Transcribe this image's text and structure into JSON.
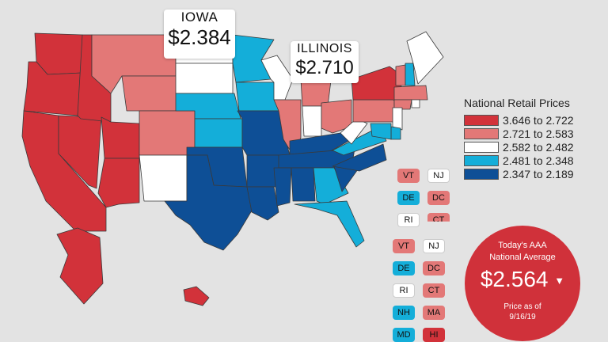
{
  "legend": {
    "title": "National Retail Prices",
    "items": [
      {
        "label": "3.646 to 2.722",
        "color": "#d2323a"
      },
      {
        "label": "2.721 to 2.583",
        "color": "#e37877"
      },
      {
        "label": "2.582 to 2.482",
        "color": "#ffffff"
      },
      {
        "label": "2.481 to 2.348",
        "color": "#14aed9"
      },
      {
        "label": "2.347 to 2.189",
        "color": "#0e4f96"
      }
    ]
  },
  "callouts": {
    "iowa": {
      "name": "IOWA",
      "price": "$2.384"
    },
    "illinois": {
      "name": "ILLINOIS",
      "price": "$2.710"
    }
  },
  "small_states": {
    "top": [
      {
        "code": "VT",
        "bin": 1
      },
      {
        "code": "NJ",
        "bin": 2
      },
      {
        "code": "DE",
        "bin": 3
      },
      {
        "code": "DC",
        "bin": 1
      },
      {
        "code": "RI",
        "bin": 2
      },
      {
        "code": "CT",
        "bin": 1
      }
    ],
    "bottom": [
      {
        "code": "VT",
        "bin": 1
      },
      {
        "code": "NJ",
        "bin": 2
      },
      {
        "code": "DE",
        "bin": 3
      },
      {
        "code": "DC",
        "bin": 1
      },
      {
        "code": "RI",
        "bin": 2
      },
      {
        "code": "CT",
        "bin": 1
      },
      {
        "code": "NH",
        "bin": 3
      },
      {
        "code": "MA",
        "bin": 1
      },
      {
        "code": "MD",
        "bin": 3
      },
      {
        "code": "HI",
        "bin": 0
      }
    ]
  },
  "national_average": {
    "title_line1": "Today's AAA",
    "title_line2": "National Average",
    "price": "$2.564",
    "arrow": "▼",
    "sub_line1": "Price as of",
    "sub_line2": "9/16/19"
  },
  "state_bins": {
    "WA": 0,
    "OR": 0,
    "CA": 0,
    "NV": 0,
    "ID": 0,
    "UT": 0,
    "AZ": 0,
    "AK": 0,
    "HI": 0,
    "NY": 0,
    "MT": 1,
    "WY": 1,
    "CO": 1,
    "IL": 1,
    "MI": 1,
    "OH": 1,
    "PA": 1,
    "VT": 1,
    "MA": 1,
    "CT": 1,
    "DC": 1,
    "ND": 2,
    "SD": 2,
    "NM": 2,
    "WI": 2,
    "IN": 2,
    "WV": 2,
    "ME": 2,
    "NJ": 2,
    "RI": 2,
    "MN": 3,
    "IA": 3,
    "NE": 3,
    "KS": 3,
    "GA": 3,
    "FL": 3,
    "VA": 3,
    "NH": 3,
    "DE": 3,
    "MD": 3,
    "TX": 4,
    "OK": 4,
    "MO": 4,
    "AR": 4,
    "LA": 4,
    "MS": 4,
    "AL": 4,
    "TN": 4,
    "KY": 4,
    "SC": 4,
    "NC": 4
  }
}
